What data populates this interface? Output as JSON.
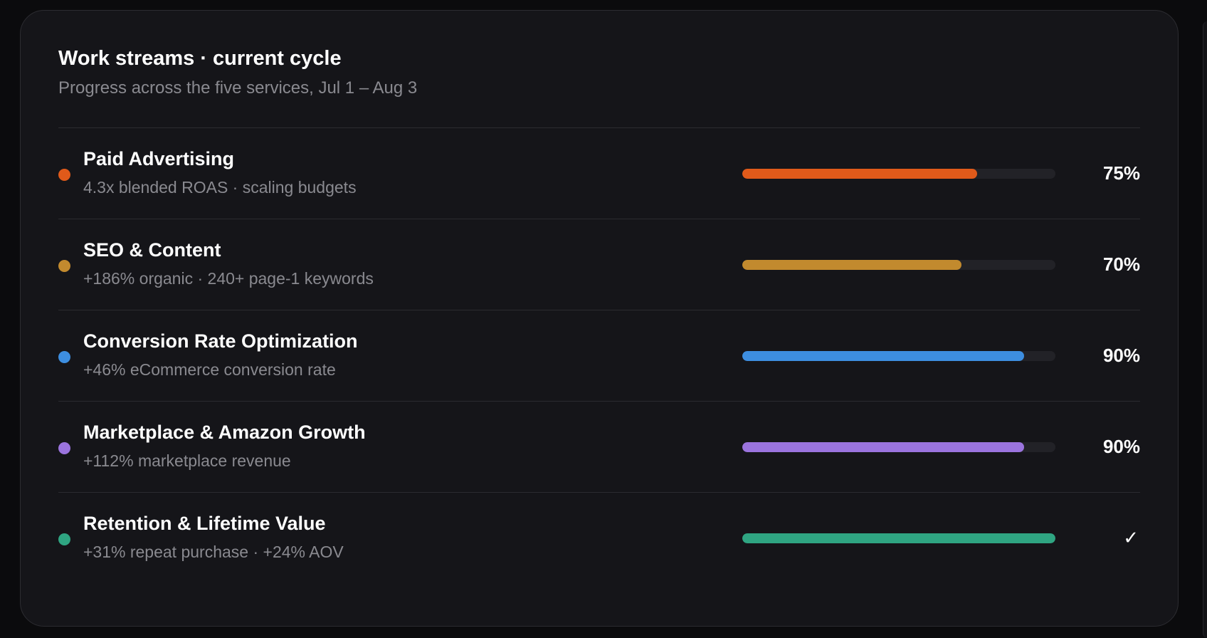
{
  "card": {
    "title": "Work streams · current cycle",
    "subtitle": "Progress across the five services, Jul 1 – Aug 3"
  },
  "streams": [
    {
      "name": "Paid Advertising",
      "detail": "4.3x blended ROAS · scaling budgets",
      "progress": 75,
      "label": "75%",
      "color": "#e05a1a"
    },
    {
      "name": "SEO & Content",
      "detail": "+186% organic · 240+ page-1 keywords",
      "progress": 70,
      "label": "70%",
      "color": "#c28a2e"
    },
    {
      "name": "Conversion Rate Optimization",
      "detail": "+46% eCommerce conversion rate",
      "progress": 90,
      "label": "90%",
      "color": "#3d8ee0"
    },
    {
      "name": "Marketplace & Amazon Growth",
      "detail": "+112% marketplace revenue",
      "progress": 90,
      "label": "90%",
      "color": "#9b74de"
    },
    {
      "name": "Retention & Lifetime Value",
      "detail": "+31% repeat purchase · +24% AOV",
      "progress": 100,
      "label": "✓",
      "color": "#2fa582"
    }
  ]
}
